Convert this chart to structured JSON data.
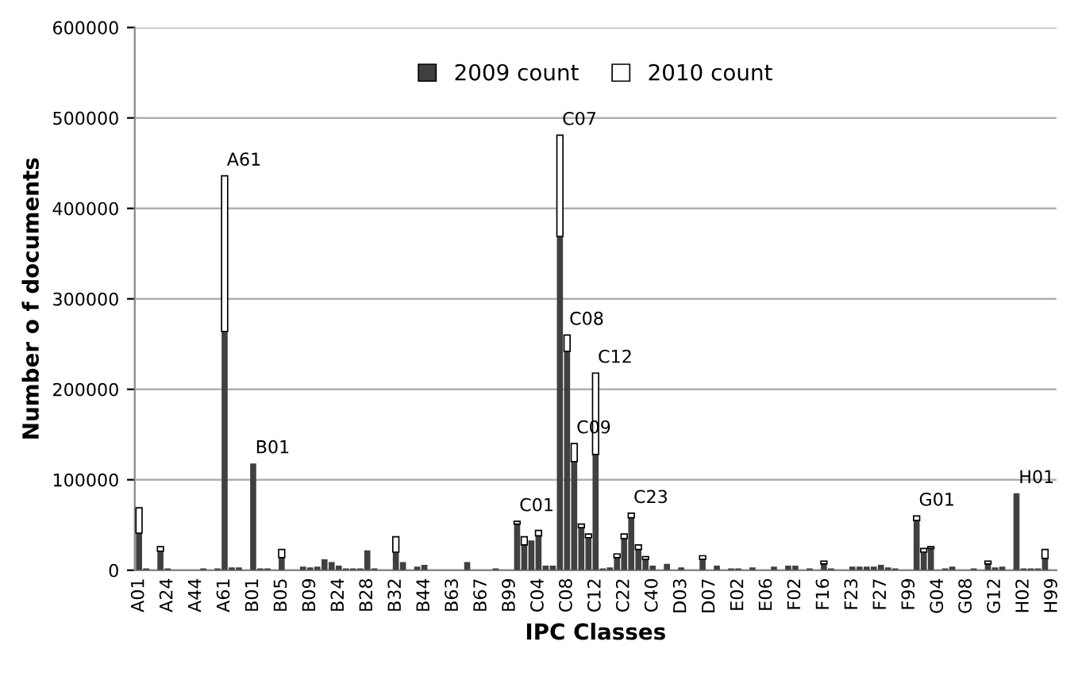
{
  "chart_data": {
    "type": "bar",
    "stacked": true,
    "xlabel": "IPC Classes",
    "ylabel": "Number o f documents",
    "categories": [
      "A01",
      null,
      null,
      null,
      "A24",
      null,
      null,
      null,
      "A44",
      null,
      null,
      null,
      "A61",
      null,
      null,
      null,
      "B01",
      null,
      null,
      null,
      "B05",
      null,
      null,
      null,
      "B09",
      null,
      null,
      null,
      "B24",
      null,
      null,
      null,
      "B28",
      null,
      null,
      null,
      "B32",
      null,
      null,
      null,
      "B44",
      null,
      null,
      null,
      "B63",
      null,
      null,
      null,
      "B67",
      null,
      null,
      null,
      "B99",
      null,
      null,
      null,
      "C04",
      null,
      null,
      null,
      "C08",
      null,
      null,
      null,
      "C12",
      null,
      null,
      null,
      "C22",
      null,
      null,
      null,
      "C40",
      null,
      null,
      null,
      "D03",
      null,
      null,
      null,
      "D07",
      null,
      null,
      null,
      "E02",
      null,
      null,
      null,
      "E06",
      null,
      null,
      null,
      "F02",
      null,
      null,
      null,
      "F16",
      null,
      null,
      null,
      "F23",
      null,
      null,
      null,
      "F27",
      null,
      null,
      null,
      "F99",
      null,
      null,
      null,
      "G04",
      null,
      null,
      null,
      "G08",
      null,
      null,
      null,
      "G12",
      null,
      null,
      null,
      "H02",
      null,
      null,
      null,
      "H99"
    ],
    "series": [
      {
        "name": "2009 count",
        "color": "#404040",
        "values": [
          41000,
          2000,
          0,
          21000,
          2000,
          0,
          0,
          0,
          0,
          2000,
          0,
          2000,
          264000,
          3000,
          3000,
          0,
          118000,
          2000,
          2000,
          0,
          14000,
          0,
          0,
          4000,
          3000,
          4000,
          12000,
          9000,
          5000,
          2000,
          2000,
          2000,
          22000,
          2000,
          0,
          0,
          20000,
          9000,
          0,
          4000,
          6000,
          0,
          0,
          0,
          0,
          0,
          9000,
          0,
          0,
          0,
          2000,
          0,
          0,
          51000,
          28000,
          33000,
          38000,
          5000,
          5000,
          369000,
          242000,
          120000,
          47000,
          36000,
          128000,
          2000,
          3000,
          14000,
          35000,
          58000,
          23000,
          12000,
          5000,
          0,
          7000,
          0,
          3000,
          0,
          0,
          12000,
          0,
          5000,
          0,
          2000,
          2000,
          0,
          3000,
          0,
          0,
          4000,
          0,
          5000,
          5000,
          0,
          2000,
          0,
          7000,
          2000,
          0,
          0,
          4000,
          4000,
          4000,
          4000,
          6000,
          3000,
          2000,
          0,
          0,
          55000,
          20000,
          24000,
          0,
          2000,
          4000,
          0,
          0,
          2000,
          0,
          7000,
          3000,
          4000,
          0,
          85000,
          2000,
          2000,
          2000,
          13000,
          0
        ]
      },
      {
        "name": "2010 count",
        "color": "#ffffff",
        "values": [
          28000,
          0,
          0,
          5000,
          0,
          0,
          0,
          0,
          0,
          0,
          0,
          0,
          172000,
          0,
          0,
          0,
          0,
          0,
          0,
          0,
          9000,
          0,
          0,
          0,
          0,
          0,
          0,
          0,
          0,
          0,
          0,
          0,
          0,
          0,
          0,
          0,
          17000,
          0,
          0,
          0,
          0,
          0,
          0,
          0,
          0,
          0,
          0,
          0,
          0,
          0,
          0,
          0,
          0,
          3000,
          9000,
          0,
          6000,
          0,
          0,
          112000,
          18000,
          20000,
          4000,
          4000,
          90000,
          0,
          0,
          4000,
          5000,
          5000,
          5000,
          3000,
          0,
          0,
          0,
          0,
          0,
          0,
          0,
          4000,
          0,
          0,
          0,
          0,
          0,
          0,
          0,
          0,
          0,
          0,
          0,
          0,
          0,
          0,
          0,
          0,
          3000,
          0,
          0,
          0,
          0,
          0,
          0,
          0,
          0,
          0,
          0,
          0,
          0,
          5000,
          4000,
          2000,
          0,
          0,
          0,
          0,
          0,
          0,
          0,
          3000,
          0,
          0,
          0,
          0,
          0,
          0,
          0,
          10000,
          0
        ]
      }
    ],
    "ylim": [
      0,
      600000
    ],
    "yticks": [
      0,
      100000,
      200000,
      300000,
      400000,
      500000,
      600000
    ],
    "grid": "y",
    "legend": "top",
    "annotations": [
      "A61",
      "B01",
      "C01",
      "C07",
      "C08",
      "C09",
      "C12",
      "C23",
      "G01",
      "H01"
    ]
  }
}
